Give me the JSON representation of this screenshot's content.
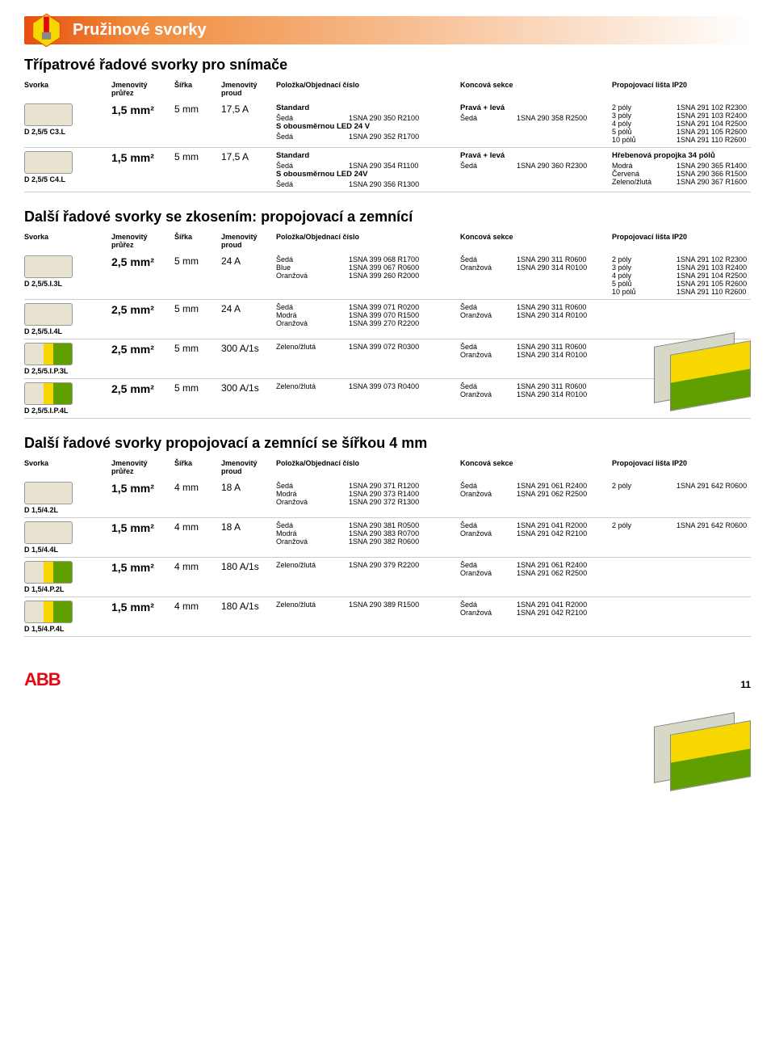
{
  "colors": {
    "orange_grad_start": "#e84e0f",
    "orange_grad_mid": "#f08a3a",
    "abb_red": "#e30613",
    "cream": "#e8e2d0",
    "yellow": "#f6d800",
    "green": "#5fa000",
    "light_grey": "#d8d8c8"
  },
  "header": {
    "title": "Pružinové svorky"
  },
  "columns": {
    "svorka": "Svorka",
    "prurez": "Jmenovitý průřez",
    "sirka": "Šířka",
    "proud": "Jmenovitý proud",
    "polozka": "Položka/Objednací číslo",
    "koncova": "Koncová sekce",
    "propoj": "Propojovací lišta IP20"
  },
  "section1": {
    "title": "Třípatrové řadové svorky pro snímače",
    "rows": [
      {
        "label": "D 2,5/5 C3.L",
        "prurez": "1,5 mm²",
        "sirka": "5 mm",
        "proud": "17,5 A",
        "polozka": [
          {
            "h": "Standard"
          },
          {
            "l": "Šedá",
            "r": "1SNA 290 350 R2100"
          },
          {
            "h": "S obousměrnou LED 24 V"
          },
          {
            "l": "Šedá",
            "r": "1SNA 290 352 R1700"
          }
        ],
        "koncova": [
          {
            "h": "Pravá + levá"
          },
          {
            "l": "Šedá",
            "r": "1SNA 290 358 R2500"
          }
        ],
        "propoj": [
          {
            "l": "2 póly",
            "r": "1SNA 291 102 R2300"
          },
          {
            "l": "3 póly",
            "r": "1SNA 291 103 R2400"
          },
          {
            "l": "4 póly",
            "r": "1SNA 291 104 R2500"
          },
          {
            "l": "5 pólů",
            "r": "1SNA 291 105 R2600"
          },
          {
            "l": "10 pólů",
            "r": "1SNA 291 110 R2600"
          }
        ]
      },
      {
        "label": "D 2,5/5 C4.L",
        "prurez": "1,5 mm²",
        "sirka": "5 mm",
        "proud": "17,5 A",
        "polozka": [
          {
            "h": "Standard"
          },
          {
            "l": "Šedá",
            "r": "1SNA 290 354 R1100"
          },
          {
            "h": "S obousměrnou LED 24V"
          },
          {
            "l": "Šedá",
            "r": "1SNA 290 356 R1300"
          }
        ],
        "koncova": [
          {
            "h": "Pravá + levá"
          },
          {
            "l": "Šedá",
            "r": "1SNA 290 360 R2300"
          }
        ],
        "propoj_head": "Hřebenová propojka 34 pólů",
        "propoj": [
          {
            "l": "Modrá",
            "r": "1SNA 290 365 R1400"
          },
          {
            "l": "Červená",
            "r": "1SNA 290 366 R1500"
          },
          {
            "l": "Zeleno/žlutá",
            "r": "1SNA 290 367 R1600"
          }
        ]
      }
    ]
  },
  "section2": {
    "title": "Další řadové svorky se zkosením: propojovací a zemnící",
    "rows": [
      {
        "label": "D 2,5/5.I.3L",
        "prurez": "2,5 mm²",
        "sirka": "5 mm",
        "proud": "24 A",
        "polozka": [
          {
            "l": "Šedá",
            "r": "1SNA 399 068 R1700"
          },
          {
            "l": "Blue",
            "r": "1SNA 399 067 R0600"
          },
          {
            "l": "Oranžová",
            "r": "1SNA 399 260 R2000"
          }
        ],
        "koncova": [
          {
            "l": "Šedá",
            "r": "1SNA 290 311 R0600"
          },
          {
            "l": "",
            "r": ""
          },
          {
            "l": "Oranžová",
            "r": "1SNA 290 314 R0100"
          }
        ],
        "propoj": [
          {
            "l": "2 póly",
            "r": "1SNA 291 102 R2300"
          },
          {
            "l": "3 póly",
            "r": "1SNA 291 103 R2400"
          },
          {
            "l": "4 póly",
            "r": "1SNA 291 104 R2500"
          },
          {
            "l": "5 pólů",
            "r": "1SNA 291 105 R2600"
          },
          {
            "l": "10 pólů",
            "r": "1SNA 291 110 R2600"
          }
        ]
      },
      {
        "label": "D 2,5/5.I.4L",
        "prurez": "2,5 mm²",
        "sirka": "5 mm",
        "proud": "24 A",
        "polozka": [
          {
            "l": "Šedá",
            "r": "1SNA 399 071 R0200"
          },
          {
            "l": "Modrá",
            "r": "1SNA 399 070 R1500"
          },
          {
            "l": "Oranžová",
            "r": "1SNA 399 270 R2200"
          }
        ],
        "koncova": [
          {
            "l": "Šedá",
            "r": "1SNA 290 311 R0600"
          },
          {
            "l": "",
            "r": ""
          },
          {
            "l": "Oranžová",
            "r": "1SNA 290 314 R0100"
          }
        ],
        "propoj": []
      },
      {
        "label": "D 2,5/5.I.P.3L",
        "img_class": "svorka-green",
        "prurez": "2,5 mm²",
        "sirka": "5 mm",
        "proud": "300 A/1s",
        "polozka": [
          {
            "l": "Zeleno/žlutá",
            "r": "1SNA 399 072 R0300"
          }
        ],
        "koncova": [
          {
            "l": "Šedá",
            "r": "1SNA 290 311 R0600"
          },
          {
            "l": "Oranžová",
            "r": "1SNA 290 314 R0100"
          }
        ],
        "propoj": []
      },
      {
        "label": "D 2,5/5.I.P.4L",
        "img_class": "svorka-green",
        "prurez": "2,5 mm²",
        "sirka": "5 mm",
        "proud": "300 A/1s",
        "polozka": [
          {
            "l": "Zeleno/žlutá",
            "r": "1SNA 399 073 R0400"
          }
        ],
        "koncova": [
          {
            "l": "Šedá",
            "r": "1SNA 290 311 R0600"
          },
          {
            "l": "Oranžová",
            "r": "1SNA 290 314 R0100"
          }
        ],
        "propoj": []
      }
    ]
  },
  "section3": {
    "title": "Další řadové svorky propojovací a zemnící se šířkou 4 mm",
    "rows": [
      {
        "label": "D 1,5/4.2L",
        "prurez": "1,5 mm²",
        "sirka": "4 mm",
        "proud": "18 A",
        "polozka": [
          {
            "l": "Šedá",
            "r": "1SNA 290 371 R1200"
          },
          {
            "l": "Modrá",
            "r": "1SNA 290 373 R1400"
          },
          {
            "l": "Oranžová",
            "r": "1SNA 290 372 R1300"
          }
        ],
        "koncova": [
          {
            "l": "Šedá",
            "r": "1SNA 291 061 R2400"
          },
          {
            "l": "",
            "r": ""
          },
          {
            "l": "Oranžová",
            "r": "1SNA 291 062 R2500"
          }
        ],
        "propoj": [
          {
            "l": "2 póly",
            "r": "1SNA 291 642 R0600"
          }
        ]
      },
      {
        "label": "D 1,5/4.4L",
        "prurez": "1,5 mm²",
        "sirka": "4 mm",
        "proud": "18 A",
        "polozka": [
          {
            "l": "Šedá",
            "r": "1SNA 290 381 R0500"
          },
          {
            "l": "Modrá",
            "r": "1SNA 290 383 R0700"
          },
          {
            "l": "Oranžová",
            "r": "1SNA 290 382 R0600"
          }
        ],
        "koncova": [
          {
            "l": "Šedá",
            "r": "1SNA 291 041 R2000"
          },
          {
            "l": "",
            "r": ""
          },
          {
            "l": "Oranžová",
            "r": "1SNA 291 042 R2100"
          }
        ],
        "propoj": [
          {
            "l": "2 póly",
            "r": "1SNA 291 642 R0600"
          }
        ]
      },
      {
        "label": "D 1,5/4.P.2L",
        "img_class": "svorka-green",
        "prurez": "1,5 mm²",
        "sirka": "4 mm",
        "proud": "180 A/1s",
        "polozka": [
          {
            "l": "Zeleno/žlutá",
            "r": "1SNA 290 379 R2200"
          }
        ],
        "koncova": [
          {
            "l": "Šedá",
            "r": "1SNA 291 061 R2400"
          },
          {
            "l": "Oranžová",
            "r": "1SNA 291 062 R2500"
          }
        ],
        "propoj": []
      },
      {
        "label": "D 1,5/4.P.4L",
        "img_class": "svorka-green",
        "prurez": "1,5 mm²",
        "sirka": "4 mm",
        "proud": "180 A/1s",
        "polozka": [
          {
            "l": "Zeleno/žlutá",
            "r": "1SNA 290 389 R1500"
          }
        ],
        "koncova": [
          {
            "l": "Šedá",
            "r": "1SNA 291 041 R2000"
          },
          {
            "l": "Oranžová",
            "r": "1SNA 291 042 R2100"
          }
        ],
        "propoj": []
      }
    ]
  },
  "footer": {
    "logo": "ABB",
    "page": "11"
  }
}
